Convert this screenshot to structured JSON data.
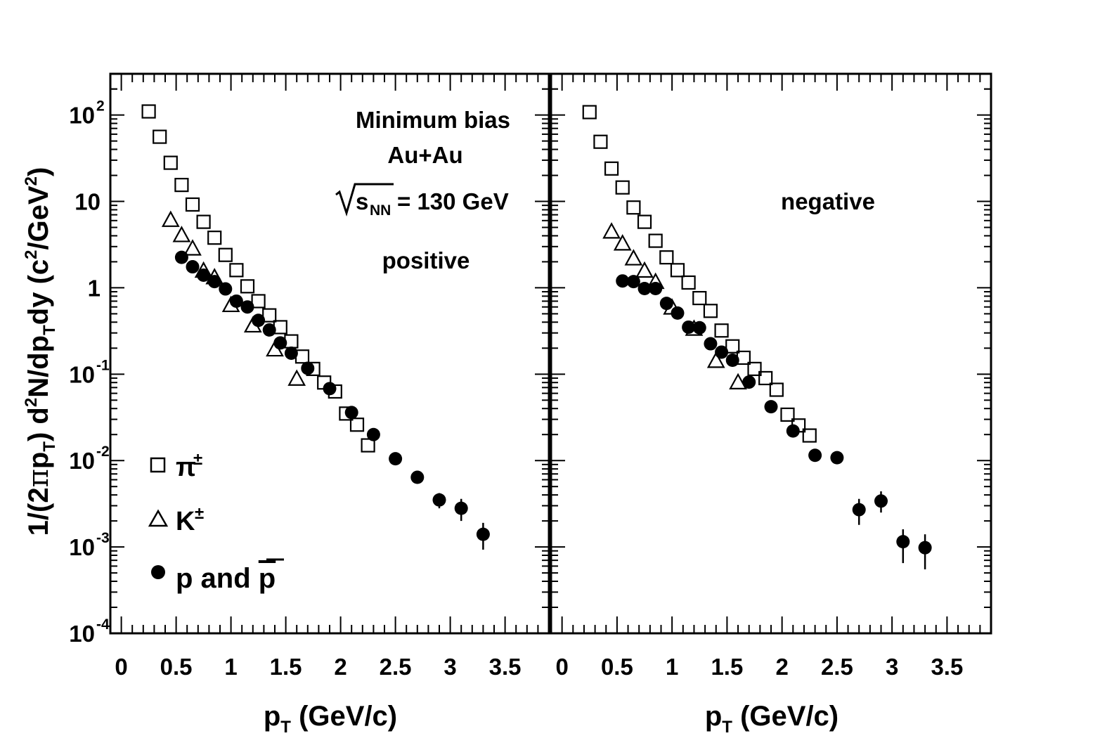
{
  "chart_data": [
    {
      "type": "scatter",
      "annotations": [
        "Minimum bias",
        "Au+Au",
        "s",
        "NN",
        "= 130 GeV",
        "positive"
      ],
      "xlabel": {
        "main": "p",
        "sub": "T",
        "rest": " (GeV/c)"
      },
      "ylabel": "1/(2πp_T) d²N/dp_T dy (c²/GeV²)",
      "xlim": [
        -0.1,
        3.9
      ],
      "ylim": [
        0.0001,
        300
      ],
      "yscale": "log",
      "xticks": [
        "0",
        "0.5",
        "1",
        "1.5",
        "2",
        "2.5",
        "3",
        "3.5"
      ],
      "xtick_values": [
        0,
        0.5,
        1,
        1.5,
        2,
        2.5,
        3,
        3.5
      ],
      "yticks": [
        {
          "value": 100,
          "base": "10",
          "exp": "2"
        },
        {
          "value": 10,
          "base": "10",
          "exp": ""
        },
        {
          "value": 1,
          "base": "1",
          "exp": ""
        },
        {
          "value": 0.1,
          "base": "10",
          "exp": "-1"
        },
        {
          "value": 0.01,
          "base": "10",
          "exp": "-2"
        },
        {
          "value": 0.001,
          "base": "10",
          "exp": "-3"
        },
        {
          "value": 0.0001,
          "base": "10",
          "exp": "-4"
        }
      ],
      "legend": [
        {
          "marker": "square",
          "label": "π",
          "sup": "±"
        },
        {
          "marker": "triangle",
          "label": "K",
          "sup": "±"
        },
        {
          "marker": "circle",
          "label": "p and ",
          "overline": "p"
        }
      ],
      "series": [
        {
          "name": "π±",
          "marker": "square",
          "points": [
            {
              "x": 0.25,
              "y": 110
            },
            {
              "x": 0.35,
              "y": 56
            },
            {
              "x": 0.45,
              "y": 28
            },
            {
              "x": 0.55,
              "y": 15.5
            },
            {
              "x": 0.65,
              "y": 9.2
            },
            {
              "x": 0.75,
              "y": 5.8
            },
            {
              "x": 0.85,
              "y": 3.8
            },
            {
              "x": 0.95,
              "y": 2.4
            },
            {
              "x": 1.05,
              "y": 1.6
            },
            {
              "x": 1.15,
              "y": 1.04
            },
            {
              "x": 1.25,
              "y": 0.7
            },
            {
              "x": 1.35,
              "y": 0.48
            },
            {
              "x": 1.45,
              "y": 0.35
            },
            {
              "x": 1.55,
              "y": 0.24
            },
            {
              "x": 1.65,
              "y": 0.16
            },
            {
              "x": 1.75,
              "y": 0.115
            },
            {
              "x": 1.85,
              "y": 0.08
            },
            {
              "x": 1.95,
              "y": 0.063
            },
            {
              "x": 2.05,
              "y": 0.035
            },
            {
              "x": 2.15,
              "y": 0.026
            },
            {
              "x": 2.25,
              "y": 0.015
            }
          ]
        },
        {
          "name": "K±",
          "marker": "triangle",
          "points": [
            {
              "x": 0.45,
              "y": 6.0
            },
            {
              "x": 0.55,
              "y": 4.0
            },
            {
              "x": 0.65,
              "y": 2.8
            },
            {
              "x": 0.75,
              "y": 1.55
            },
            {
              "x": 0.85,
              "y": 1.3
            },
            {
              "x": 1.0,
              "y": 0.62
            },
            {
              "x": 1.2,
              "y": 0.36
            },
            {
              "x": 1.4,
              "y": 0.19
            },
            {
              "x": 1.6,
              "y": 0.087
            }
          ]
        },
        {
          "name": "p and p̄",
          "marker": "circle",
          "points": [
            {
              "x": 0.55,
              "y": 2.25
            },
            {
              "x": 0.65,
              "y": 1.75
            },
            {
              "x": 0.75,
              "y": 1.4
            },
            {
              "x": 0.85,
              "y": 1.18
            },
            {
              "x": 0.95,
              "y": 0.97
            },
            {
              "x": 1.05,
              "y": 0.7
            },
            {
              "x": 1.15,
              "y": 0.6
            },
            {
              "x": 1.25,
              "y": 0.42
            },
            {
              "x": 1.35,
              "y": 0.325
            },
            {
              "x": 1.45,
              "y": 0.23
            },
            {
              "x": 1.55,
              "y": 0.175
            },
            {
              "x": 1.7,
              "y": 0.117
            },
            {
              "x": 1.9,
              "y": 0.068
            },
            {
              "x": 2.1,
              "y": 0.036
            },
            {
              "x": 2.3,
              "y": 0.02
            },
            {
              "x": 2.5,
              "y": 0.0105
            },
            {
              "x": 2.7,
              "y": 0.0064,
              "err": [
                0.0055,
                0.0075
              ]
            },
            {
              "x": 2.9,
              "y": 0.0035,
              "err": [
                0.0028,
                0.0042
              ]
            },
            {
              "x": 3.1,
              "y": 0.0028,
              "err": [
                0.002,
                0.0036
              ]
            },
            {
              "x": 3.3,
              "y": 0.0014,
              "err": [
                0.00093,
                0.0019
              ]
            }
          ]
        }
      ]
    },
    {
      "type": "scatter",
      "annotations": [
        "negative"
      ],
      "xlabel": {
        "main": "p",
        "sub": "T",
        "rest": " (GeV/c)"
      },
      "xlim": [
        -0.1,
        3.9
      ],
      "ylim": [
        0.0001,
        300
      ],
      "yscale": "log",
      "xticks": [
        "0",
        "0.5",
        "1",
        "1.5",
        "2",
        "2.5",
        "3",
        "3.5"
      ],
      "xtick_values": [
        0,
        0.5,
        1,
        1.5,
        2,
        2.5,
        3,
        3.5
      ],
      "series": [
        {
          "name": "π±",
          "marker": "square",
          "points": [
            {
              "x": 0.25,
              "y": 108
            },
            {
              "x": 0.35,
              "y": 49
            },
            {
              "x": 0.45,
              "y": 24
            },
            {
              "x": 0.55,
              "y": 14.5
            },
            {
              "x": 0.65,
              "y": 8.5
            },
            {
              "x": 0.75,
              "y": 5.8
            },
            {
              "x": 0.85,
              "y": 3.5
            },
            {
              "x": 0.95,
              "y": 2.25
            },
            {
              "x": 1.05,
              "y": 1.6
            },
            {
              "x": 1.15,
              "y": 1.15
            },
            {
              "x": 1.25,
              "y": 0.76
            },
            {
              "x": 1.35,
              "y": 0.54
            },
            {
              "x": 1.45,
              "y": 0.32
            },
            {
              "x": 1.55,
              "y": 0.21
            },
            {
              "x": 1.65,
              "y": 0.155
            },
            {
              "x": 1.75,
              "y": 0.115
            },
            {
              "x": 1.85,
              "y": 0.09
            },
            {
              "x": 1.95,
              "y": 0.066
            },
            {
              "x": 2.05,
              "y": 0.034
            },
            {
              "x": 2.15,
              "y": 0.0255
            },
            {
              "x": 2.25,
              "y": 0.0195
            }
          ]
        },
        {
          "name": "K±",
          "marker": "triangle",
          "points": [
            {
              "x": 0.45,
              "y": 4.4
            },
            {
              "x": 0.55,
              "y": 3.2
            },
            {
              "x": 0.65,
              "y": 2.15
            },
            {
              "x": 0.75,
              "y": 1.55
            },
            {
              "x": 0.85,
              "y": 1.15
            },
            {
              "x": 1.0,
              "y": 0.58
            },
            {
              "x": 1.2,
              "y": 0.33
            },
            {
              "x": 1.4,
              "y": 0.14
            },
            {
              "x": 1.6,
              "y": 0.079
            }
          ]
        },
        {
          "name": "p and p̄",
          "marker": "circle",
          "points": [
            {
              "x": 0.55,
              "y": 1.2
            },
            {
              "x": 0.65,
              "y": 1.18
            },
            {
              "x": 0.75,
              "y": 0.98
            },
            {
              "x": 0.85,
              "y": 0.98
            },
            {
              "x": 0.95,
              "y": 0.66
            },
            {
              "x": 1.05,
              "y": 0.51
            },
            {
              "x": 1.15,
              "y": 0.35
            },
            {
              "x": 1.25,
              "y": 0.345
            },
            {
              "x": 1.35,
              "y": 0.225
            },
            {
              "x": 1.45,
              "y": 0.18
            },
            {
              "x": 1.55,
              "y": 0.145
            },
            {
              "x": 1.7,
              "y": 0.081
            },
            {
              "x": 1.9,
              "y": 0.042
            },
            {
              "x": 2.1,
              "y": 0.022
            },
            {
              "x": 2.3,
              "y": 0.0115
            },
            {
              "x": 2.5,
              "y": 0.0108
            },
            {
              "x": 2.7,
              "y": 0.0027,
              "err": [
                0.0018,
                0.0036
              ]
            },
            {
              "x": 2.9,
              "y": 0.0034,
              "err": [
                0.0025,
                0.0044
              ]
            },
            {
              "x": 3.1,
              "y": 0.00115,
              "err": [
                0.00065,
                0.0016
              ]
            },
            {
              "x": 3.3,
              "y": 0.00098,
              "err": [
                0.00055,
                0.0014
              ]
            }
          ]
        }
      ]
    }
  ]
}
